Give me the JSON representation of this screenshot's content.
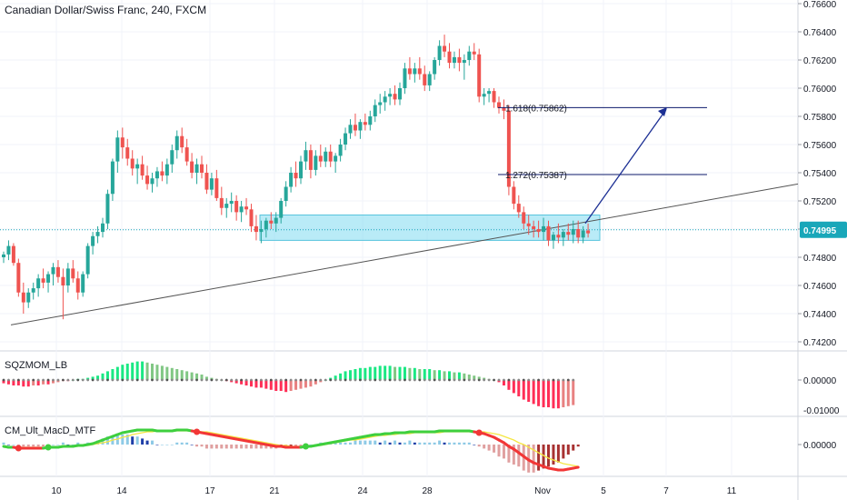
{
  "header": {
    "title": "Canadian Dollar/Swiss Franc, 240, FXCM"
  },
  "colors": {
    "up": "#26a69a",
    "down": "#ef5350",
    "grid": "#f0f3fa",
    "axis": "#131722",
    "zone": "#7fdbf0",
    "fib": "#0d1a6b",
    "arrow": "#1c2f94",
    "trend": "#555555",
    "price_badge": "#19a7b9",
    "hist_green": "#4caf50",
    "hist_red": "#e53935",
    "macd_green": "#3ecf3e",
    "macd_red": "#f23636",
    "signal": "#f5e642",
    "macd_pos_light": "#8ecae6",
    "macd_pos_dark": "#1f3fa8",
    "macd_neg_light": "#e0a0a0",
    "macd_neg_dark": "#a83232"
  },
  "chart_data": {
    "type": "candlestick",
    "symbol": "Canadian Dollar/Swiss Franc",
    "timeframe": "240",
    "source": "FXCM",
    "price_axis": {
      "ticks": [
        "0.76600",
        "0.76400",
        "0.76200",
        "0.76000",
        "0.75800",
        "0.75600",
        "0.75400",
        "0.75200",
        "0.75000",
        "0.74800",
        "0.74600",
        "0.74400",
        "0.74200"
      ],
      "current_price": "0.74995"
    },
    "time_axis": {
      "ticks": [
        "10",
        "14",
        "17",
        "21",
        "24",
        "28",
        "Nov",
        "5",
        "7",
        "11"
      ]
    },
    "candles": [
      [
        0.748,
        0.7484,
        0.7476,
        0.7482
      ],
      [
        0.7482,
        0.7492,
        0.7478,
        0.7488
      ],
      [
        0.7488,
        0.749,
        0.7474,
        0.7476
      ],
      [
        0.7476,
        0.7479,
        0.7452,
        0.7455
      ],
      [
        0.7455,
        0.7462,
        0.744,
        0.7448
      ],
      [
        0.7448,
        0.7458,
        0.7444,
        0.7455
      ],
      [
        0.7455,
        0.7462,
        0.745,
        0.7458
      ],
      [
        0.7458,
        0.7468,
        0.7452,
        0.7465
      ],
      [
        0.7465,
        0.7472,
        0.7458,
        0.7462
      ],
      [
        0.7462,
        0.747,
        0.7455,
        0.7468
      ],
      [
        0.7468,
        0.7476,
        0.746,
        0.7473
      ],
      [
        0.7473,
        0.7478,
        0.7462,
        0.7466
      ],
      [
        0.7466,
        0.7472,
        0.7436,
        0.746
      ],
      [
        0.746,
        0.7476,
        0.7455,
        0.7472
      ],
      [
        0.7472,
        0.7478,
        0.7462,
        0.7465
      ],
      [
        0.7465,
        0.747,
        0.745,
        0.7455
      ],
      [
        0.7455,
        0.747,
        0.7452,
        0.7468
      ],
      [
        0.7468,
        0.749,
        0.7465,
        0.7488
      ],
      [
        0.7488,
        0.7498,
        0.7482,
        0.7495
      ],
      [
        0.7495,
        0.7502,
        0.749,
        0.7498
      ],
      [
        0.7498,
        0.7508,
        0.7494,
        0.7504
      ],
      [
        0.7504,
        0.7528,
        0.75,
        0.7525
      ],
      [
        0.7525,
        0.755,
        0.752,
        0.7548
      ],
      [
        0.7548,
        0.757,
        0.754,
        0.7565
      ],
      [
        0.7565,
        0.7572,
        0.755,
        0.7558
      ],
      [
        0.7558,
        0.7564,
        0.7545,
        0.755
      ],
      [
        0.755,
        0.7556,
        0.7538,
        0.7543
      ],
      [
        0.7543,
        0.755,
        0.7532,
        0.7546
      ],
      [
        0.7546,
        0.7552,
        0.7535,
        0.7538
      ],
      [
        0.7538,
        0.7545,
        0.7528,
        0.7532
      ],
      [
        0.7532,
        0.754,
        0.7526,
        0.7536
      ],
      [
        0.7536,
        0.7544,
        0.753,
        0.7541
      ],
      [
        0.7541,
        0.7548,
        0.7534,
        0.7538
      ],
      [
        0.7538,
        0.755,
        0.7532,
        0.7546
      ],
      [
        0.7546,
        0.756,
        0.754,
        0.7556
      ],
      [
        0.7556,
        0.757,
        0.755,
        0.7566
      ],
      [
        0.7566,
        0.7572,
        0.7554,
        0.7558
      ],
      [
        0.7558,
        0.7564,
        0.7545,
        0.7548
      ],
      [
        0.7548,
        0.7554,
        0.7536,
        0.754
      ],
      [
        0.754,
        0.755,
        0.7532,
        0.7546
      ],
      [
        0.7546,
        0.7552,
        0.7536,
        0.754
      ],
      [
        0.754,
        0.7546,
        0.7525,
        0.7528
      ],
      [
        0.7528,
        0.754,
        0.7524,
        0.7536
      ],
      [
        0.7536,
        0.7542,
        0.752,
        0.7522
      ],
      [
        0.7522,
        0.753,
        0.751,
        0.7515
      ],
      [
        0.7515,
        0.7522,
        0.7508,
        0.7518
      ],
      [
        0.7518,
        0.7526,
        0.7512,
        0.752
      ],
      [
        0.752,
        0.7524,
        0.7506,
        0.7512
      ],
      [
        0.7512,
        0.752,
        0.7505,
        0.7516
      ],
      [
        0.7516,
        0.7522,
        0.751,
        0.7514
      ],
      [
        0.7514,
        0.7518,
        0.7498,
        0.7502
      ],
      [
        0.7502,
        0.751,
        0.7492,
        0.7498
      ],
      [
        0.7498,
        0.7506,
        0.749,
        0.75
      ],
      [
        0.75,
        0.7508,
        0.7494,
        0.7506
      ],
      [
        0.7506,
        0.7512,
        0.75,
        0.7504
      ],
      [
        0.7504,
        0.7512,
        0.7498,
        0.7508
      ],
      [
        0.7508,
        0.7522,
        0.7504,
        0.752
      ],
      [
        0.752,
        0.7534,
        0.7516,
        0.753
      ],
      [
        0.753,
        0.7544,
        0.7526,
        0.754
      ],
      [
        0.754,
        0.7548,
        0.753,
        0.7536
      ],
      [
        0.7536,
        0.7552,
        0.7532,
        0.7548
      ],
      [
        0.7548,
        0.7562,
        0.7542,
        0.7556
      ],
      [
        0.7556,
        0.756,
        0.7536,
        0.7542
      ],
      [
        0.7542,
        0.7556,
        0.7538,
        0.7552
      ],
      [
        0.7552,
        0.756,
        0.7544,
        0.7548
      ],
      [
        0.7548,
        0.7558,
        0.7544,
        0.7555
      ],
      [
        0.7555,
        0.756,
        0.7544,
        0.7548
      ],
      [
        0.7548,
        0.7554,
        0.754,
        0.7552
      ],
      [
        0.7552,
        0.7564,
        0.7548,
        0.756
      ],
      [
        0.756,
        0.7572,
        0.7556,
        0.7568
      ],
      [
        0.7568,
        0.7578,
        0.7564,
        0.7574
      ],
      [
        0.7574,
        0.7582,
        0.7566,
        0.757
      ],
      [
        0.757,
        0.7578,
        0.7564,
        0.7576
      ],
      [
        0.7576,
        0.7582,
        0.757,
        0.7574
      ],
      [
        0.7574,
        0.7584,
        0.757,
        0.758
      ],
      [
        0.758,
        0.7592,
        0.7576,
        0.7588
      ],
      [
        0.7588,
        0.7596,
        0.7582,
        0.759
      ],
      [
        0.759,
        0.7598,
        0.7584,
        0.7594
      ],
      [
        0.7594,
        0.76,
        0.7588,
        0.7596
      ],
      [
        0.7596,
        0.7602,
        0.7588,
        0.7592
      ],
      [
        0.7592,
        0.7604,
        0.7588,
        0.76
      ],
      [
        0.76,
        0.7618,
        0.7596,
        0.7614
      ],
      [
        0.7614,
        0.7622,
        0.7606,
        0.761
      ],
      [
        0.761,
        0.7618,
        0.7604,
        0.7614
      ],
      [
        0.7614,
        0.7622,
        0.7606,
        0.761
      ],
      [
        0.761,
        0.7616,
        0.7598,
        0.7602
      ],
      [
        0.7602,
        0.7612,
        0.7598,
        0.761
      ],
      [
        0.761,
        0.7622,
        0.7606,
        0.762
      ],
      [
        0.762,
        0.7634,
        0.7616,
        0.763
      ],
      [
        0.763,
        0.7638,
        0.7622,
        0.7626
      ],
      [
        0.7626,
        0.7632,
        0.7614,
        0.7618
      ],
      [
        0.7618,
        0.7626,
        0.7614,
        0.7622
      ],
      [
        0.7622,
        0.7628,
        0.7612,
        0.7618
      ],
      [
        0.7618,
        0.7624,
        0.7606,
        0.762
      ],
      [
        0.762,
        0.763,
        0.7616,
        0.7626
      ],
      [
        0.7626,
        0.7632,
        0.762,
        0.7624
      ],
      [
        0.7624,
        0.7628,
        0.759,
        0.7594
      ],
      [
        0.7594,
        0.76,
        0.7588,
        0.7596
      ],
      [
        0.7596,
        0.76,
        0.759,
        0.7598
      ],
      [
        0.7598,
        0.76,
        0.7586,
        0.759
      ],
      [
        0.759,
        0.7594,
        0.7582,
        0.7586
      ],
      [
        0.7586,
        0.7592,
        0.7578,
        0.7584
      ],
      [
        0.7584,
        0.7588,
        0.7524,
        0.753
      ],
      [
        0.753,
        0.7534,
        0.7514,
        0.7518
      ],
      [
        0.7518,
        0.7524,
        0.7508,
        0.7512
      ],
      [
        0.7512,
        0.7516,
        0.75,
        0.7504
      ],
      [
        0.7504,
        0.751,
        0.7496,
        0.7502
      ],
      [
        0.7502,
        0.7506,
        0.7494,
        0.75
      ],
      [
        0.75,
        0.7506,
        0.7494,
        0.7498
      ],
      [
        0.7498,
        0.7508,
        0.7492,
        0.7502
      ],
      [
        0.7502,
        0.7506,
        0.7488,
        0.7492
      ],
      [
        0.7492,
        0.7498,
        0.7486,
        0.7496
      ],
      [
        0.7496,
        0.7504,
        0.749,
        0.7494
      ],
      [
        0.7494,
        0.75,
        0.7488,
        0.7498
      ],
      [
        0.7498,
        0.7504,
        0.7492,
        0.7496
      ],
      [
        0.7496,
        0.7506,
        0.749,
        0.75
      ],
      [
        0.75,
        0.7506,
        0.749,
        0.7494
      ],
      [
        0.7494,
        0.7502,
        0.749,
        0.7499
      ],
      [
        0.7499,
        0.7504,
        0.7494,
        0.7497
      ]
    ],
    "annotations": {
      "fib_levels": [
        {
          "label": "1.618(0.75862)",
          "price": 0.75862
        },
        {
          "label": "1.272(0.75387)",
          "price": 0.75387
        }
      ],
      "trendline": {
        "from_price": 0.7432,
        "to_price": 0.7532
      },
      "zone": {
        "top": 0.751,
        "bottom": 0.7492
      }
    },
    "indicators": [
      {
        "name": "SQZMOM_LB",
        "axis_ticks": [
          "0.00000",
          "-0.01000"
        ],
        "histogram": [
          -3,
          -4,
          -5,
          -5,
          -6,
          -6,
          -5,
          -5,
          -4,
          -4,
          -3,
          -2,
          -1,
          -1,
          0,
          1,
          1,
          2,
          3,
          4,
          6,
          8,
          10,
          12,
          14,
          15,
          16,
          17,
          17,
          16,
          15,
          14,
          13,
          12,
          11,
          10,
          9,
          8,
          7,
          6,
          5,
          3,
          2,
          1,
          0,
          -1,
          -2,
          -3,
          -4,
          -5,
          -6,
          -7,
          -7,
          -8,
          -9,
          -10,
          -10,
          -11,
          -10,
          -9,
          -8,
          -7,
          -6,
          -4,
          -2,
          0,
          2,
          4,
          6,
          8,
          9,
          10,
          11,
          11,
          12,
          12,
          13,
          13,
          13,
          12,
          12,
          12,
          11,
          11,
          10,
          10,
          10,
          9,
          9,
          8,
          8,
          7,
          7,
          6,
          5,
          4,
          3,
          2,
          1,
          0,
          -2,
          -5,
          -9,
          -12,
          -15,
          -18,
          -20,
          -22,
          -24,
          -25,
          -25,
          -26,
          -26,
          -25,
          -24,
          -23
        ]
      },
      {
        "name": "CM_Ult_MacD_MTF",
        "axis_ticks": [
          "0.00000"
        ],
        "macd": [
          -2,
          -3,
          -3,
          -4,
          -4,
          -4,
          -4,
          -4,
          -4,
          -3,
          -3,
          -3,
          -2,
          -2,
          -2,
          -1,
          -1,
          0,
          1,
          3,
          5,
          7,
          9,
          11,
          13,
          14,
          15,
          16,
          16,
          16,
          16,
          15,
          15,
          15,
          15,
          16,
          16,
          16,
          15,
          14,
          13,
          12,
          11,
          10,
          9,
          8,
          7,
          6,
          5,
          4,
          3,
          2,
          1,
          0,
          -1,
          -2,
          -2,
          -3,
          -3,
          -3,
          -3,
          -2,
          -2,
          -1,
          0,
          1,
          2,
          3,
          4,
          5,
          6,
          7,
          8,
          9,
          10,
          11,
          11,
          12,
          12,
          13,
          13,
          13,
          14,
          14,
          14,
          14,
          14,
          14,
          15,
          15,
          15,
          15,
          15,
          15,
          15,
          14,
          13,
          12,
          10,
          8,
          5,
          2,
          -2,
          -5,
          -9,
          -13,
          -17,
          -20,
          -22,
          -24,
          -26,
          -27,
          -28,
          -28,
          -27,
          -26,
          -25
        ],
        "signal": [
          -3,
          -3,
          -3,
          -3,
          -3,
          -3,
          -3,
          -3,
          -3,
          -3,
          -3,
          -3,
          -3,
          -2,
          -2,
          -2,
          -1,
          -1,
          0,
          1,
          2,
          3,
          5,
          6,
          8,
          9,
          11,
          12,
          13,
          14,
          14,
          15,
          15,
          15,
          15,
          15,
          15,
          15,
          15,
          15,
          14,
          14,
          13,
          12,
          11,
          10,
          9,
          8,
          7,
          6,
          5,
          4,
          3,
          2,
          1,
          0,
          -1,
          -1,
          -2,
          -2,
          -2,
          -2,
          -2,
          -1,
          -1,
          0,
          1,
          2,
          3,
          4,
          5,
          5,
          6,
          7,
          8,
          9,
          10,
          10,
          11,
          11,
          12,
          12,
          12,
          13,
          13,
          13,
          13,
          13,
          13,
          14,
          14,
          14,
          14,
          14,
          14,
          14,
          14,
          14,
          13,
          12,
          11,
          9,
          7,
          5,
          2,
          0,
          -3,
          -6,
          -9,
          -12,
          -15,
          -17,
          -19,
          -21,
          -22,
          -23,
          -24
        ]
      }
    ]
  }
}
